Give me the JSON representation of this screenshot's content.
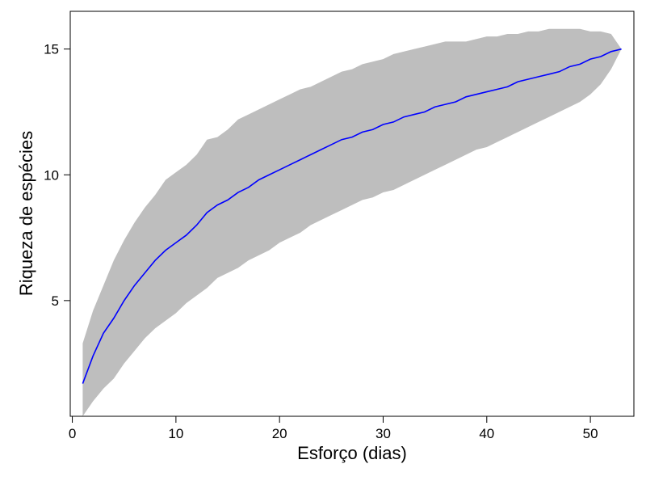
{
  "chart_data": {
    "type": "area",
    "title": "",
    "xlabel": "Esforço (dias)",
    "ylabel": "Riqueza de espécies",
    "xlim": [
      -0.2,
      54.2
    ],
    "ylim": [
      0.4,
      16.5
    ],
    "xticks": [
      0,
      10,
      20,
      30,
      40,
      50
    ],
    "yticks": [
      5,
      10,
      15
    ],
    "grid": false,
    "legend": "none",
    "colors": {
      "band": "#bebebe",
      "line": "#0000ff",
      "axis": "#000000"
    },
    "series": [
      {
        "type": "band",
        "x": [
          1,
          2,
          3,
          4,
          5,
          6,
          7,
          8,
          9,
          10,
          11,
          12,
          13,
          14,
          15,
          16,
          17,
          18,
          19,
          20,
          21,
          22,
          23,
          24,
          25,
          26,
          27,
          28,
          29,
          30,
          31,
          32,
          33,
          34,
          35,
          36,
          37,
          38,
          39,
          40,
          41,
          42,
          43,
          44,
          45,
          46,
          47,
          48,
          49,
          50,
          51,
          52,
          53
        ],
        "upper": [
          3.3,
          4.6,
          5.6,
          6.6,
          7.4,
          8.1,
          8.7,
          9.2,
          9.8,
          10.1,
          10.4,
          10.8,
          11.4,
          11.5,
          11.8,
          12.2,
          12.4,
          12.6,
          12.8,
          13.0,
          13.2,
          13.4,
          13.5,
          13.7,
          13.9,
          14.1,
          14.2,
          14.4,
          14.5,
          14.6,
          14.8,
          14.9,
          15.0,
          15.1,
          15.2,
          15.3,
          15.3,
          15.3,
          15.4,
          15.5,
          15.5,
          15.6,
          15.6,
          15.7,
          15.7,
          15.8,
          15.8,
          15.8,
          15.8,
          15.7,
          15.7,
          15.6,
          15.0
        ],
        "lower": [
          0.4,
          1.0,
          1.5,
          1.9,
          2.5,
          3.0,
          3.5,
          3.9,
          4.2,
          4.5,
          4.9,
          5.2,
          5.5,
          5.9,
          6.1,
          6.3,
          6.6,
          6.8,
          7.0,
          7.3,
          7.5,
          7.7,
          8.0,
          8.2,
          8.4,
          8.6,
          8.8,
          9.0,
          9.1,
          9.3,
          9.4,
          9.6,
          9.8,
          10.0,
          10.2,
          10.4,
          10.6,
          10.8,
          11.0,
          11.1,
          11.3,
          11.5,
          11.7,
          11.9,
          12.1,
          12.3,
          12.5,
          12.7,
          12.9,
          13.2,
          13.6,
          14.2,
          15.0
        ]
      },
      {
        "type": "line",
        "x": [
          1,
          2,
          3,
          4,
          5,
          6,
          7,
          8,
          9,
          10,
          11,
          12,
          13,
          14,
          15,
          16,
          17,
          18,
          19,
          20,
          21,
          22,
          23,
          24,
          25,
          26,
          27,
          28,
          29,
          30,
          31,
          32,
          33,
          34,
          35,
          36,
          37,
          38,
          39,
          40,
          41,
          42,
          43,
          44,
          45,
          46,
          47,
          48,
          49,
          50,
          51,
          52,
          53
        ],
        "y": [
          1.7,
          2.8,
          3.7,
          4.3,
          5.0,
          5.6,
          6.1,
          6.6,
          7.0,
          7.3,
          7.6,
          8.0,
          8.5,
          8.8,
          9.0,
          9.3,
          9.5,
          9.8,
          10.0,
          10.2,
          10.4,
          10.6,
          10.8,
          11.0,
          11.2,
          11.4,
          11.5,
          11.7,
          11.8,
          12.0,
          12.1,
          12.3,
          12.4,
          12.5,
          12.7,
          12.8,
          12.9,
          13.1,
          13.2,
          13.3,
          13.4,
          13.5,
          13.7,
          13.8,
          13.9,
          14.0,
          14.1,
          14.3,
          14.4,
          14.6,
          14.7,
          14.9,
          15.0
        ]
      }
    ]
  }
}
